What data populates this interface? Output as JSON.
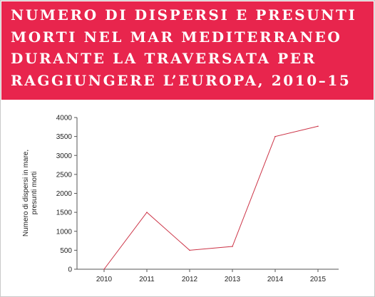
{
  "header": {
    "title": "NUMERO DI DISPERSI E PRESUNTI\nMORTI NEL MAR MEDITERRANEO\nDURANTE LA TRAVERSATA PER\nRAGGIUNGERE L’EUROPA, 2010–15",
    "background_color": "#e8254d"
  },
  "chart_data": {
    "type": "line",
    "title": "NUMERO DI DISPERSI E PRESUNTI MORTI NEL MAR MEDITERRANEO DURANTE LA TRAVERSATA PER RAGGIUNGERE L’EUROPA, 2010–15",
    "xlabel": "",
    "ylabel_lines": [
      "Numero di dispersi in mare,",
      "presunti morti"
    ],
    "categories": [
      "2010",
      "2011",
      "2012",
      "2013",
      "2014",
      "2015"
    ],
    "series": [
      {
        "values": [
          0,
          1500,
          500,
          600,
          3500,
          3770
        ],
        "color": "#cc3346"
      }
    ],
    "yticks": [
      0,
      500,
      1000,
      1500,
      2000,
      2500,
      3000,
      3500,
      4000
    ],
    "ylim": [
      0,
      4000
    ],
    "grid": false,
    "legend": "none"
  }
}
